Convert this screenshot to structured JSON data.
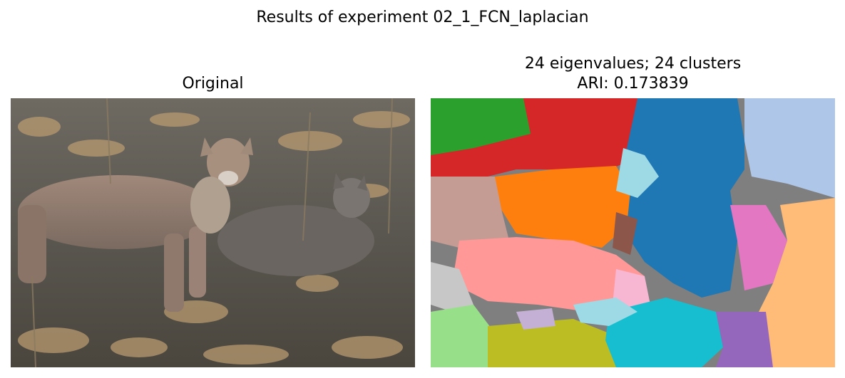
{
  "figure": {
    "suptitle": "Results of experiment 02_1_FCN_laplacian"
  },
  "left_panel": {
    "title": "Original"
  },
  "right_panel": {
    "title_line1": "24 eigenvalues; 24 clusters",
    "title_line2": "ARI: 0.173839"
  },
  "segment_colors": {
    "green": "#2ca02c",
    "red": "#d62728",
    "blue": "#1f77b4",
    "light_blue": "#aec7e8",
    "orange": "#ff7f0e",
    "rose_brown": "#c49c94",
    "brown": "#8c564b",
    "cyan_light": "#9edae5",
    "pink": "#e377c2",
    "peach": "#ffbb78",
    "salmon": "#ff9896",
    "gray": "#7f7f7f",
    "light_gray": "#c7c7c7",
    "light_green": "#98df8a",
    "olive": "#bcbd22",
    "teal": "#17becf",
    "purple": "#9467bd",
    "lavender": "#c5b0d5",
    "light_pink": "#f7b6d2"
  }
}
